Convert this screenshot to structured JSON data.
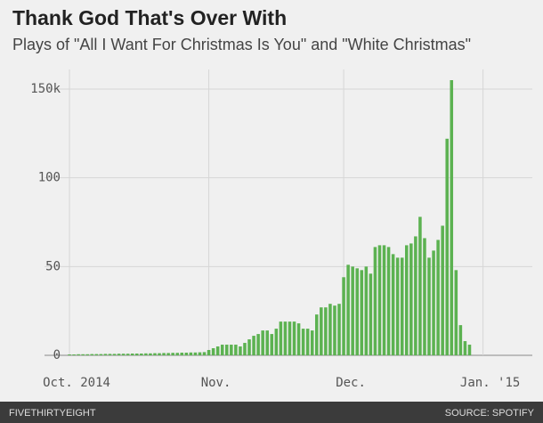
{
  "chart_data": {
    "type": "bar",
    "title": "Thank God That's Over With",
    "subtitle": "Plays of \"All I Want For Christmas Is You\" and \"White Christmas\"",
    "categories": [
      "Oct. 2014",
      null,
      null,
      null,
      null,
      null,
      null,
      null,
      null,
      null,
      null,
      null,
      null,
      null,
      null,
      null,
      null,
      null,
      null,
      null,
      null,
      null,
      null,
      null,
      null,
      null,
      null,
      null,
      null,
      null,
      null,
      "Nov.",
      null,
      null,
      null,
      null,
      null,
      null,
      null,
      null,
      null,
      null,
      null,
      null,
      null,
      null,
      null,
      null,
      null,
      null,
      null,
      null,
      null,
      null,
      null,
      null,
      null,
      null,
      null,
      null,
      null,
      "Dec.",
      null,
      null,
      null,
      null,
      null,
      null,
      null,
      null,
      null,
      null,
      null,
      null,
      null,
      null,
      null,
      null,
      null,
      null,
      null,
      null,
      null,
      null,
      null,
      null,
      null,
      null,
      null,
      null,
      null,
      null,
      "Jan. '15"
    ],
    "values": [
      0.5,
      0.5,
      0.6,
      0.6,
      0.6,
      0.7,
      0.7,
      0.7,
      0.8,
      0.8,
      0.8,
      0.9,
      0.9,
      0.9,
      1,
      1,
      1,
      1.1,
      1.1,
      1.2,
      1.2,
      1.3,
      1.3,
      1.4,
      1.4,
      1.5,
      1.5,
      1.6,
      1.6,
      1.7,
      1.8,
      3,
      4,
      5,
      6,
      6,
      6,
      6,
      5,
      7,
      9,
      11,
      12,
      14,
      14,
      12,
      15,
      19,
      19,
      19,
      19,
      18,
      15,
      15,
      14,
      23,
      27,
      27,
      29,
      28,
      29,
      44,
      51,
      50,
      49,
      48,
      50,
      46,
      61,
      62,
      62,
      61,
      57,
      55,
      55,
      62,
      63,
      67,
      78,
      66,
      55,
      59,
      65,
      73,
      122,
      155,
      48,
      17,
      8,
      6,
      null,
      null,
      null
    ],
    "color": "#5cb251",
    "ylim": [
      0,
      155
    ],
    "yticks": [
      0,
      50,
      100,
      {
        "value": 150,
        "label": "150k"
      }
    ],
    "grid": true
  },
  "footer": {
    "brand": "FIVETHIRTYEIGHT",
    "source": "SOURCE: SPOTIFY"
  }
}
